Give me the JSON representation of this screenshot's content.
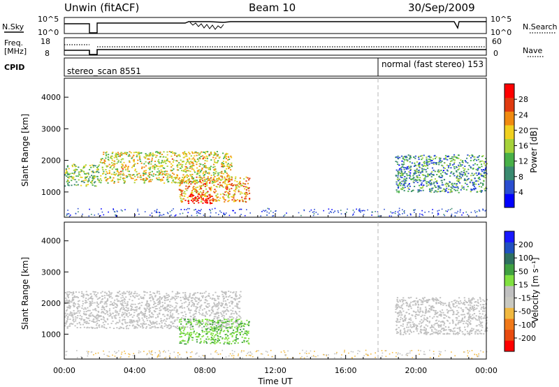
{
  "header": {
    "radar": "Unwin (fitACF)",
    "beam": "Beam 10",
    "date": "30/Sep/2009"
  },
  "top_panels": {
    "nsky_label": "N.Sky",
    "nsky_ticks": [
      "10^5",
      "10^0"
    ],
    "nsearch_label": "N.Search",
    "nsearch_ticks": [
      "10^5",
      "10^0"
    ],
    "freq_label_1": "Freq.",
    "freq_label_2": "[MHz]",
    "freq_ticks": [
      "18",
      "8"
    ],
    "nave_label": "Nave",
    "nave_ticks": [
      "60",
      "0"
    ],
    "cpid_label": "CPID",
    "cpid_1": "stereo_scan 8551",
    "cpid_2": "normal (fast stereo) 153"
  },
  "colors": {
    "power_scale": [
      "#0000ff",
      "#2a4ed0",
      "#3a8a70",
      "#48b048",
      "#a6d23a",
      "#f0d020",
      "#f08a10",
      "#e03a10",
      "#ff0000"
    ],
    "velocity_scale": [
      "#ff0000",
      "#e84b10",
      "#f07818",
      "#f0b840",
      "#c8c8c0",
      "#c0c0c0",
      "#80e040",
      "#3fa040",
      "#2e7060",
      "#2050c0",
      "#1818ff"
    ],
    "ground_scatter": "#b0b0b0"
  },
  "chart_data": [
    {
      "type": "heatmap",
      "panel": "power",
      "ylabel": "Slant Range [km]",
      "yticks": [
        1000,
        2000,
        3000,
        4000
      ],
      "ylim": [
        200,
        4600
      ],
      "xlim": [
        0,
        24
      ],
      "colorbar_label": "Power [dB]",
      "colorbar_ticks": [
        "4",
        "8",
        "12",
        "16",
        "20",
        "24",
        "28"
      ],
      "colorbar_range": [
        0,
        32
      ],
      "regions": [
        {
          "t0": 0.0,
          "t1": 2.0,
          "r0": 1200,
          "r1": 1900,
          "level": 14
        },
        {
          "t0": 2.0,
          "t1": 9.5,
          "r0": 1300,
          "r1": 2300,
          "level": 18
        },
        {
          "t0": 6.5,
          "t1": 10.5,
          "r0": 700,
          "r1": 1500,
          "level": 22
        },
        {
          "t0": 7.0,
          "t1": 8.5,
          "r0": 650,
          "r1": 950,
          "level": 30
        },
        {
          "t0": 18.8,
          "t1": 24.0,
          "r0": 1000,
          "r1": 2200,
          "level": 10
        }
      ]
    },
    {
      "type": "heatmap",
      "panel": "velocity",
      "ylabel": "Slant Range [km]",
      "yticks": [
        1000,
        2000,
        3000,
        4000
      ],
      "ylim": [
        200,
        4600
      ],
      "xlim": [
        0,
        24
      ],
      "xlabel": "Time UT",
      "xticks": [
        "00:00",
        "04:00",
        "08:00",
        "12:00",
        "16:00",
        "20:00",
        "00:00"
      ],
      "colorbar_label": "Velocity [m s⁻¹]",
      "colorbar_ticks": [
        "-200",
        "-100",
        "-50",
        "-15",
        "15",
        "50",
        "100",
        "200"
      ],
      "colorbar_range": [
        -250,
        250
      ],
      "regions": [
        {
          "t0": 0.0,
          "t1": 10.0,
          "r0": 1200,
          "r1": 2400,
          "level": 0
        },
        {
          "t0": 6.5,
          "t1": 10.5,
          "r0": 700,
          "r1": 1500,
          "level": 60
        },
        {
          "t0": 18.8,
          "t1": 24.0,
          "r0": 1000,
          "r1": 2200,
          "level": 0
        }
      ]
    }
  ]
}
